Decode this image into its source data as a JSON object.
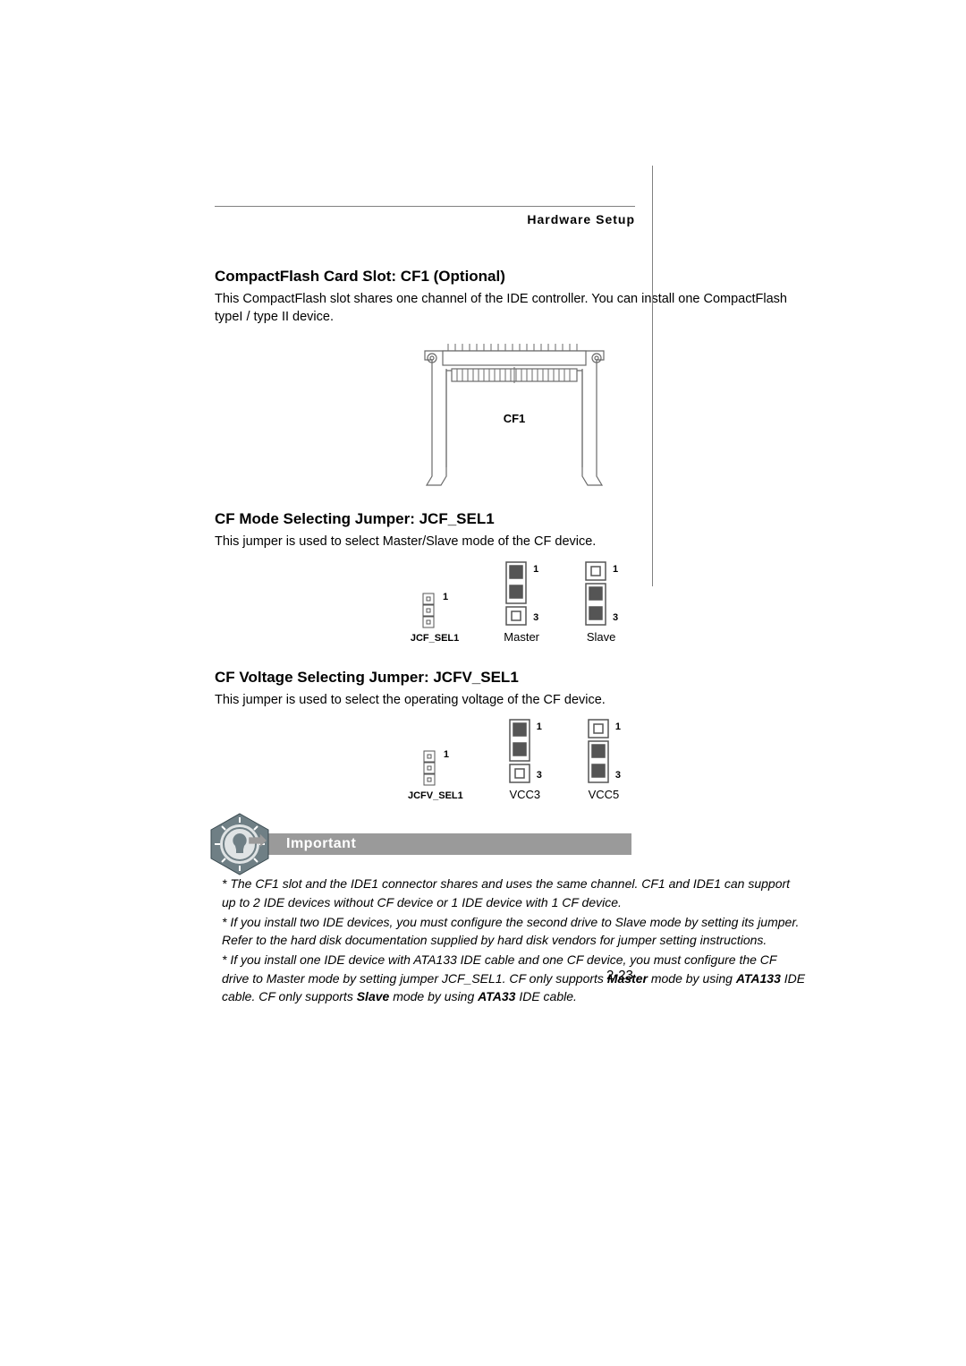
{
  "header": {
    "section": "Hardware Setup"
  },
  "cf_slot": {
    "title": "CompactFlash Card Slot: CF1 (Optional)",
    "body": "This CompactFlash slot shares one channel of the IDE controller. You can install one CompactFlash typeI / type II device.",
    "label": "CF1",
    "diagram": {
      "stroke": "#6a6a6a",
      "stroke_width": 1.2
    }
  },
  "jcf_sel1": {
    "title": "CF Mode Selecting Jumper: JCF_SEL1",
    "body": "This jumper is used to select Master/Slave mode of the CF device.",
    "small_label": "JCF_SEL1",
    "opt_a": {
      "caption": "Master",
      "shorted": "12"
    },
    "opt_b": {
      "caption": "Slave",
      "shorted": "23"
    },
    "pin_top": "1",
    "pin_bot": "3"
  },
  "jcfv_sel1": {
    "title": "CF Voltage Selecting Jumper: JCFV_SEL1",
    "body": "This jumper is used to select the operating voltage of the CF device.",
    "small_label": "JCFV_SEL1",
    "opt_a": {
      "caption": "VCC3",
      "shorted": "12"
    },
    "opt_b": {
      "caption": "VCC5",
      "shorted": "23"
    },
    "pin_top": "1",
    "pin_bot": "3"
  },
  "important": {
    "heading": "Important",
    "notes": [
      "The CF1 slot and the IDE1 connector shares and uses the same channel. CF1 and IDE1 can support up to 2 IDE devices without CF device or 1 IDE device with 1 CF device.",
      "If you install two IDE devices, you must configure the second drive to Slave mode by setting its jumper. Refer to the hard disk documentation supplied by hard disk vendors for jumper setting instructions.",
      "If you install one IDE device with ATA133 IDE cable and one CF device, you must configure the CF drive to Master mode by setting jumper JCF_SEL1. CF only supports <b>Master</b> mode by using <b>ATA133</b> IDE cable. CF only supports <b>Slave</b> mode by using <b>ATA33</b> IDE cable."
    ]
  },
  "page_number": "2-23",
  "icon": {
    "fill": "#7a8a90",
    "inner": "#e8e8e8",
    "accent": "#4a5a60"
  },
  "jumper_style": {
    "stroke": "#555555",
    "fill_dark": "#555555",
    "fill_light": "#ffffff",
    "box_size": 20,
    "gap": 2
  }
}
